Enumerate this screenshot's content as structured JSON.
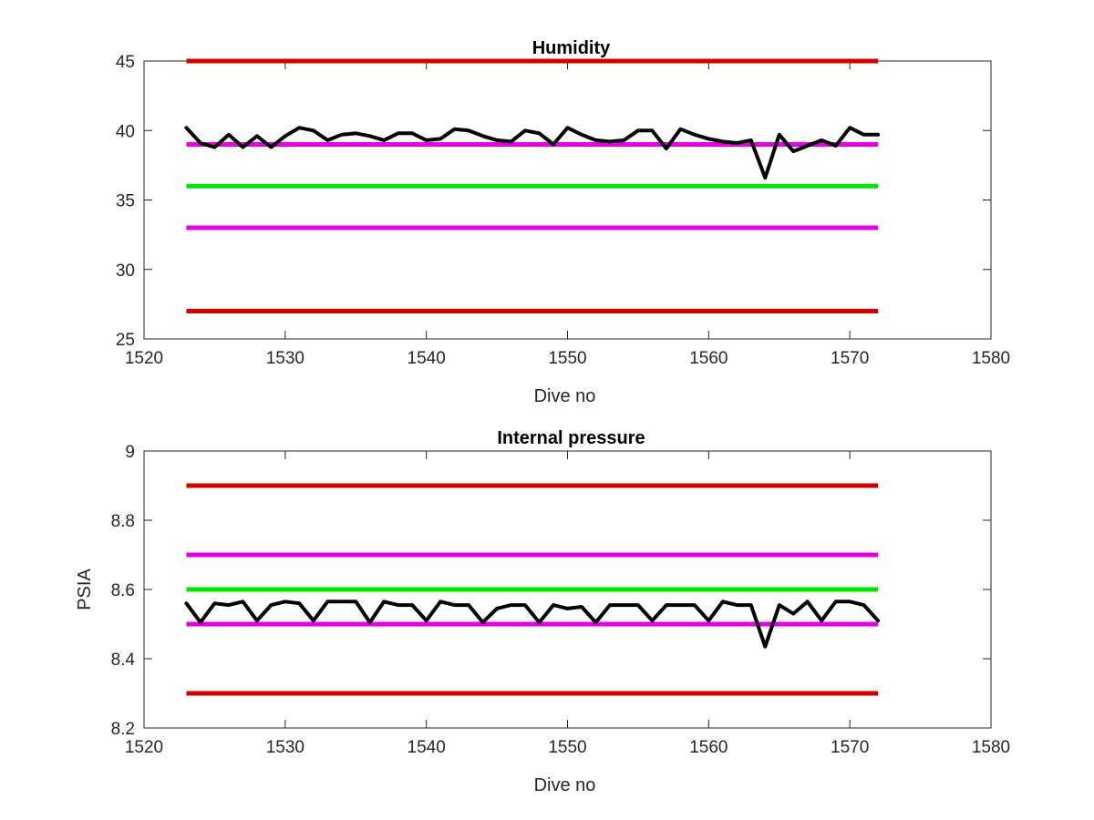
{
  "chart_data": [
    {
      "type": "line",
      "title": "Humidity",
      "xlabel": "Dive no",
      "ylabel": "",
      "xlim": [
        1520,
        1580
      ],
      "ylim": [
        25,
        45
      ],
      "xticks": [
        "1520",
        "1530",
        "1540",
        "1550",
        "1560",
        "1570",
        "1580"
      ],
      "yticks": [
        "25",
        "30",
        "35",
        "40",
        "45"
      ],
      "grid": false,
      "reference_lines": [
        {
          "y": 45,
          "x": [
            1523,
            1572
          ],
          "color": "#d40000"
        },
        {
          "y": 39,
          "x": [
            1523,
            1572
          ],
          "color": "#e600e6"
        },
        {
          "y": 36,
          "x": [
            1523,
            1572
          ],
          "color": "#00e600"
        },
        {
          "y": 33,
          "x": [
            1523,
            1572
          ],
          "color": "#e600e6"
        },
        {
          "y": 27,
          "x": [
            1523,
            1572
          ],
          "color": "#d40000"
        }
      ],
      "series": [
        {
          "color": "#000000",
          "x": [
            1523,
            1524,
            1525,
            1526,
            1527,
            1528,
            1529,
            1530,
            1531,
            1532,
            1533,
            1534,
            1535,
            1536,
            1537,
            1538,
            1539,
            1540,
            1541,
            1542,
            1543,
            1544,
            1545,
            1546,
            1547,
            1548,
            1549,
            1550,
            1551,
            1552,
            1553,
            1554,
            1555,
            1556,
            1557,
            1558,
            1559,
            1560,
            1561,
            1562,
            1563,
            1564,
            1565,
            1566,
            1567,
            1568,
            1569,
            1570,
            1571,
            1572
          ],
          "y": [
            40.2,
            39.1,
            38.8,
            39.7,
            38.8,
            39.6,
            38.8,
            39.6,
            40.2,
            40.0,
            39.3,
            39.7,
            39.8,
            39.6,
            39.3,
            39.8,
            39.8,
            39.3,
            39.4,
            40.1,
            40.0,
            39.6,
            39.3,
            39.2,
            40.0,
            39.8,
            39.0,
            40.2,
            39.7,
            39.3,
            39.2,
            39.3,
            40.0,
            40.0,
            38.7,
            40.1,
            39.7,
            39.4,
            39.2,
            39.1,
            39.3,
            36.6,
            39.7,
            38.5,
            38.9,
            39.3,
            38.9,
            40.2,
            39.7,
            39.7
          ]
        }
      ]
    },
    {
      "type": "line",
      "title": "Internal pressure",
      "xlabel": "Dive no",
      "ylabel": "PSIA",
      "xlim": [
        1520,
        1580
      ],
      "ylim": [
        8.2,
        9
      ],
      "xticks": [
        "1520",
        "1530",
        "1540",
        "1550",
        "1560",
        "1570",
        "1580"
      ],
      "yticks": [
        "8.2",
        "8.4",
        "8.6",
        "8.8",
        "9"
      ],
      "grid": false,
      "reference_lines": [
        {
          "y": 8.9,
          "x": [
            1523,
            1572
          ],
          "color": "#d40000"
        },
        {
          "y": 8.7,
          "x": [
            1523,
            1572
          ],
          "color": "#e600e6"
        },
        {
          "y": 8.6,
          "x": [
            1523,
            1572
          ],
          "color": "#00e600"
        },
        {
          "y": 8.5,
          "x": [
            1523,
            1572
          ],
          "color": "#e600e6"
        },
        {
          "y": 8.3,
          "x": [
            1523,
            1572
          ],
          "color": "#d40000"
        }
      ],
      "series": [
        {
          "color": "#000000",
          "x": [
            1523,
            1524,
            1525,
            1526,
            1527,
            1528,
            1529,
            1530,
            1531,
            1532,
            1533,
            1534,
            1535,
            1536,
            1537,
            1538,
            1539,
            1540,
            1541,
            1542,
            1543,
            1544,
            1545,
            1546,
            1547,
            1548,
            1549,
            1550,
            1551,
            1552,
            1553,
            1554,
            1555,
            1556,
            1557,
            1558,
            1559,
            1560,
            1561,
            1562,
            1563,
            1564,
            1565,
            1566,
            1567,
            1568,
            1569,
            1570,
            1571,
            1572
          ],
          "y": [
            8.56,
            8.505,
            8.56,
            8.555,
            8.565,
            8.51,
            8.555,
            8.565,
            8.56,
            8.51,
            8.565,
            8.565,
            8.565,
            8.505,
            8.565,
            8.555,
            8.555,
            8.51,
            8.565,
            8.555,
            8.555,
            8.505,
            8.545,
            8.555,
            8.555,
            8.505,
            8.555,
            8.545,
            8.55,
            8.505,
            8.555,
            8.555,
            8.555,
            8.51,
            8.555,
            8.555,
            8.555,
            8.51,
            8.565,
            8.555,
            8.555,
            8.435,
            8.555,
            8.53,
            8.565,
            8.51,
            8.565,
            8.565,
            8.555,
            8.51
          ]
        }
      ]
    }
  ]
}
